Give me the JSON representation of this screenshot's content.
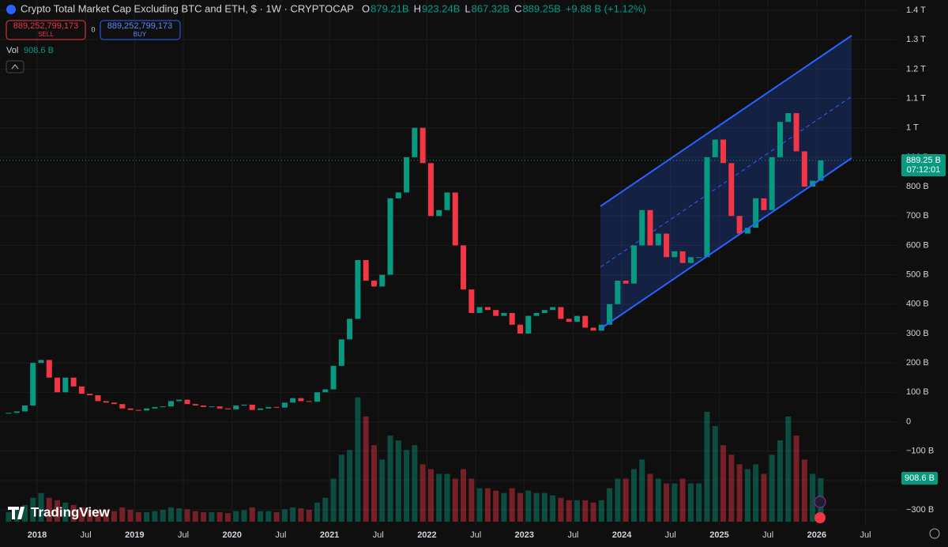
{
  "chart_data": {
    "type": "candlestick",
    "title": "Crypto Total Market Cap Excluding BTC and ETH, $ · 1W · CRYPTOCAP",
    "ohlc": [
      [
        "O",
        "879.21B"
      ],
      [
        "H",
        "923.24B"
      ],
      [
        "L",
        "867.32B"
      ],
      [
        "C",
        "889.25B"
      ]
    ],
    "change": "+9.88 B (+1.12%)",
    "trade": {
      "sell_price": "889,252,799,173",
      "sell": "SELL",
      "spread": "0",
      "buy_price": "889,252,799,173",
      "buy": "BUY"
    },
    "volume_label": "Vol",
    "volume_value": "908.6 B",
    "price_tag": "889.25 B",
    "countdown": "07:12:01",
    "volume_tag": "908.6 B",
    "brand": "TradingView",
    "up_color": "#089981",
    "down_color": "#f23645",
    "x": [
      "2017-09",
      "2017-10",
      "2017-11",
      "2017-12",
      "2018-01",
      "2018-02",
      "2018-03",
      "2018-04",
      "2018-05",
      "2018-06",
      "2018-07",
      "2018-08",
      "2018-09",
      "2018-10",
      "2018-11",
      "2018-12",
      "2019-01",
      "2019-02",
      "2019-03",
      "2019-04",
      "2019-05",
      "2019-06",
      "2019-07",
      "2019-08",
      "2019-09",
      "2019-10",
      "2019-11",
      "2019-12",
      "2020-01",
      "2020-02",
      "2020-03",
      "2020-04",
      "2020-05",
      "2020-06",
      "2020-07",
      "2020-08",
      "2020-09",
      "2020-10",
      "2020-11",
      "2020-12",
      "2021-01",
      "2021-02",
      "2021-03",
      "2021-04",
      "2021-05",
      "2021-06",
      "2021-07",
      "2021-08",
      "2021-09",
      "2021-10",
      "2021-11",
      "2021-12",
      "2022-01",
      "2022-02",
      "2022-03",
      "2022-04",
      "2022-05",
      "2022-06",
      "2022-07",
      "2022-08",
      "2022-09",
      "2022-10",
      "2022-11",
      "2022-12",
      "2023-01",
      "2023-02",
      "2023-03",
      "2023-04",
      "2023-05",
      "2023-06",
      "2023-07",
      "2023-08",
      "2023-09",
      "2023-10",
      "2023-11",
      "2023-12",
      "2024-01",
      "2024-02",
      "2024-03",
      "2024-04",
      "2024-05",
      "2024-06",
      "2024-07",
      "2024-08",
      "2024-09",
      "2024-10",
      "2024-11",
      "2024-12",
      "2025-01",
      "2025-02",
      "2025-03",
      "2025-04",
      "2025-05",
      "2025-06",
      "2025-07",
      "2025-08",
      "2025-09",
      "2025-10",
      "2025-11",
      "2025-12",
      "2026-01"
    ],
    "values": [
      30,
      35,
      55,
      200,
      210,
      150,
      100,
      150,
      120,
      95,
      90,
      70,
      65,
      60,
      45,
      40,
      38,
      45,
      50,
      52,
      70,
      75,
      60,
      55,
      50,
      52,
      45,
      42,
      55,
      58,
      40,
      45,
      50,
      48,
      65,
      80,
      70,
      68,
      100,
      110,
      190,
      280,
      350,
      550,
      480,
      460,
      500,
      760,
      780,
      900,
      1000,
      880,
      700,
      720,
      780,
      600,
      450,
      370,
      390,
      380,
      360,
      370,
      330,
      300,
      360,
      370,
      380,
      390,
      350,
      340,
      360,
      320,
      310,
      330,
      400,
      480,
      470,
      600,
      720,
      600,
      640,
      560,
      580,
      540,
      560,
      560,
      900,
      960,
      880,
      700,
      640,
      660,
      760,
      720,
      900,
      1020,
      1050,
      920,
      800,
      820,
      889.25
    ],
    "volume": [
      200,
      250,
      350,
      500,
      600,
      500,
      450,
      400,
      350,
      300,
      250,
      250,
      250,
      220,
      300,
      250,
      200,
      200,
      220,
      250,
      300,
      280,
      260,
      220,
      200,
      200,
      200,
      180,
      220,
      240,
      300,
      220,
      220,
      200,
      260,
      300,
      280,
      250,
      400,
      500,
      900,
      1400,
      1500,
      2600,
      2200,
      1600,
      1300,
      1800,
      1700,
      1500,
      1600,
      1200,
      1100,
      1000,
      1000,
      900,
      1100,
      900,
      700,
      700,
      650,
      600,
      700,
      600,
      650,
      600,
      600,
      550,
      500,
      450,
      450,
      450,
      400,
      450,
      700,
      900,
      900,
      1100,
      1300,
      1000,
      900,
      800,
      800,
      900,
      800,
      800,
      2300,
      2000,
      1600,
      1400,
      1200,
      1100,
      1200,
      1000,
      1400,
      1700,
      2200,
      1800,
      1300,
      1000,
      908.6
    ],
    "y2lim": [
      0,
      4000
    ],
    "ylim": [
      -300,
      1400
    ],
    "yticks": [
      {
        "value": 1400,
        "label": "1.4 T"
      },
      {
        "value": 1300,
        "label": "1.3 T"
      },
      {
        "value": 1200,
        "label": "1.2 T"
      },
      {
        "value": 1100,
        "label": "1.1 T"
      },
      {
        "value": 1000,
        "label": "1 T"
      },
      {
        "value": 900,
        "label": "900 B"
      },
      {
        "value": 800,
        "label": "800 B"
      },
      {
        "value": 700,
        "label": "700 B"
      },
      {
        "value": 600,
        "label": "600 B"
      },
      {
        "value": 500,
        "label": "500 B"
      },
      {
        "value": 400,
        "label": "400 B"
      },
      {
        "value": 300,
        "label": "300 B"
      },
      {
        "value": 200,
        "label": "200 B"
      },
      {
        "value": 100,
        "label": "100 B"
      },
      0,
      {
        "value": -100,
        "label": "−100 B"
      },
      {
        "value": -200,
        "label": "−200 B"
      },
      {
        "value": -300,
        "label": "−300 B"
      }
    ],
    "xticks": [
      {
        "value": "2018-01",
        "label": "2018"
      },
      {
        "value": "2018-07",
        "label": "Jul"
      },
      {
        "value": "2019-01",
        "label": "2019"
      },
      {
        "value": "2019-07",
        "label": "Jul"
      },
      {
        "value": "2020-01",
        "label": "2020"
      },
      {
        "value": "2020-07",
        "label": "Jul"
      },
      {
        "value": "2021-01",
        "label": "2021"
      },
      {
        "value": "2021-07",
        "label": "Jul"
      },
      {
        "value": "2022-01",
        "label": "2022"
      },
      {
        "value": "2022-07",
        "label": "Jul"
      },
      {
        "value": "2023-01",
        "label": "2023"
      },
      {
        "value": "2023-07",
        "label": "Jul"
      },
      {
        "value": "2024-01",
        "label": "2024"
      },
      {
        "value": "2024-07",
        "label": "Jul"
      },
      {
        "value": "2025-01",
        "label": "2025"
      },
      {
        "value": "2025-07",
        "label": "Jul"
      },
      {
        "value": "2026-01",
        "label": "2026"
      },
      {
        "value": "2026-07",
        "label": "Jul"
      }
    ],
    "grid": true
  }
}
